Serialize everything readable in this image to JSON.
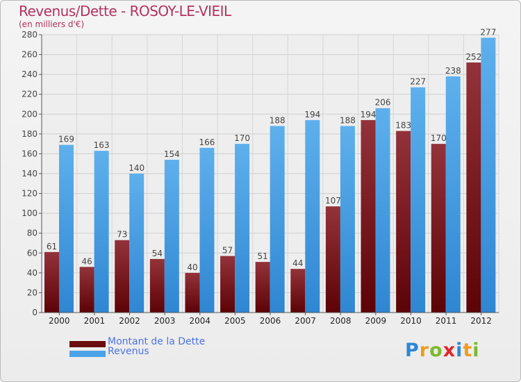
{
  "header": {
    "title": "Revenus/Dette - ROSOY-LE-VIEIL",
    "subtitle": "(en milliers d'€)"
  },
  "chart_data": {
    "type": "bar",
    "title": "Revenus/Dette - ROSOY-LE-VIEIL",
    "subtitle": "(en milliers d'€)",
    "categories": [
      "2000",
      "2001",
      "2002",
      "2003",
      "2004",
      "2005",
      "2006",
      "2007",
      "2008",
      "2009",
      "2010",
      "2011",
      "2012"
    ],
    "series": [
      {
        "name": "Montant de la Dette",
        "values": [
          61,
          46,
          73,
          54,
          40,
          57,
          51,
          44,
          107,
          194,
          183,
          170,
          252
        ],
        "color": "#7a1a1f"
      },
      {
        "name": "Revenus",
        "values": [
          169,
          163,
          140,
          154,
          166,
          170,
          188,
          194,
          188,
          206,
          227,
          238,
          277
        ],
        "color": "#4a9de3"
      }
    ],
    "ylim": [
      0,
      280
    ],
    "yticks": [
      0,
      20,
      40,
      60,
      80,
      100,
      120,
      140,
      160,
      180,
      200,
      220,
      240,
      260,
      280
    ],
    "grid": true,
    "legend": "bottom-left"
  },
  "legend": {
    "items": [
      {
        "label": "Montant de la Dette",
        "color": "#6a0c0c"
      },
      {
        "label": "Revenus",
        "color": "#4aa3e6"
      }
    ]
  },
  "logo": {
    "text": "Proxiti",
    "colors": [
      "#2e86d6",
      "#f29a1f",
      "#7cba2d",
      "#e2262b",
      "#2e86d6",
      "#f29a1f",
      "#7cba2d"
    ]
  }
}
